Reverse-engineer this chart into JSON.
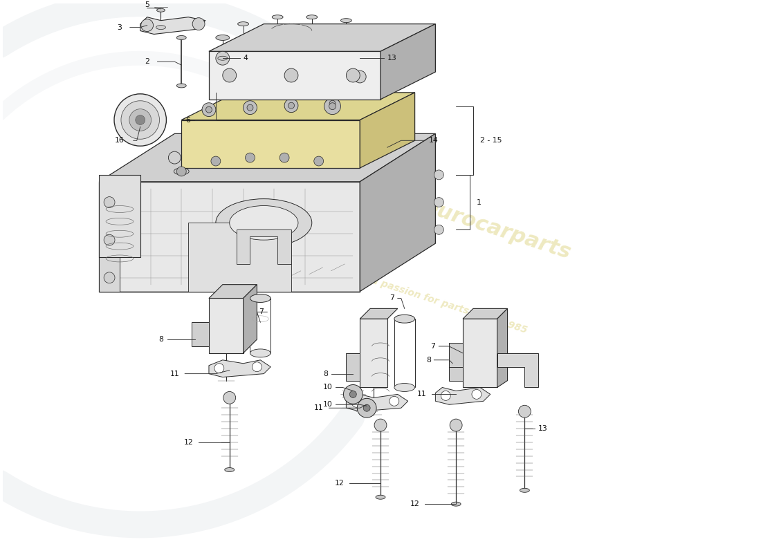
{
  "background_color": "#ffffff",
  "line_color": "#2a2a2a",
  "light_gray": "#e8e8e8",
  "mid_gray": "#d0d0d0",
  "dark_gray": "#b0b0b0",
  "yellow_fill": "#e8dfa0",
  "yellow_top": "#ddd590",
  "watermark_color": "#c8b830",
  "watermark_alpha": 0.3,
  "figsize": [
    11.0,
    8.0
  ],
  "dpi": 100,
  "swirl_color": "#c0c8d0",
  "swirl_alpha": 0.25
}
